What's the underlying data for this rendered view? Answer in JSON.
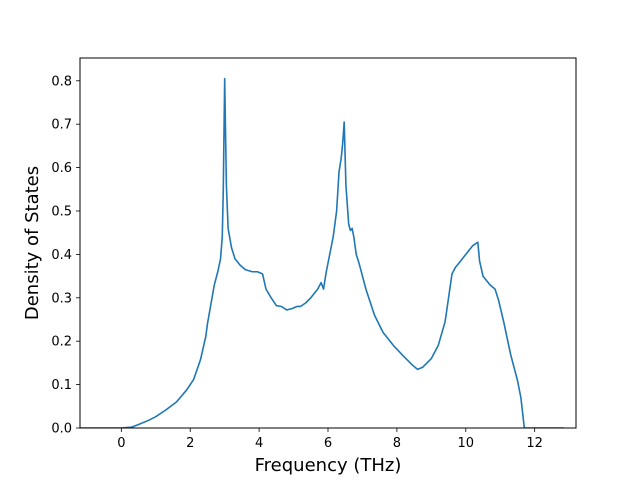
{
  "chart_data": {
    "type": "line",
    "title": "",
    "xlabel": "Frequency (THz)",
    "ylabel": "Density of States",
    "xlim": [
      -1.2,
      13.2
    ],
    "ylim": [
      0.0,
      0.8525
    ],
    "xticks": [
      0,
      2,
      4,
      6,
      8,
      10,
      12
    ],
    "xtick_labels": [
      "0",
      "2",
      "4",
      "6",
      "8",
      "10",
      "12"
    ],
    "yticks": [
      0.0,
      0.1,
      0.2,
      0.3,
      0.4,
      0.5,
      0.6,
      0.7,
      0.8
    ],
    "ytick_labels": [
      "0.0",
      "0.1",
      "0.2",
      "0.3",
      "0.4",
      "0.5",
      "0.6",
      "0.7",
      "0.8"
    ],
    "grid": false,
    "legend": "none",
    "series": [
      {
        "color": "#1f77b4",
        "x": [
          -1.2,
          0.0,
          0.3,
          0.5,
          0.8,
          1.0,
          1.3,
          1.6,
          1.9,
          2.1,
          2.3,
          2.45,
          2.5,
          2.7,
          2.8,
          2.88,
          2.93,
          2.96,
          3.0,
          3.05,
          3.1,
          3.2,
          3.3,
          3.45,
          3.6,
          3.8,
          3.95,
          4.1,
          4.2,
          4.35,
          4.5,
          4.65,
          4.8,
          4.95,
          5.1,
          5.2,
          5.35,
          5.5,
          5.7,
          5.8,
          5.87,
          5.95,
          6.05,
          6.15,
          6.25,
          6.32,
          6.38,
          6.42,
          6.47,
          6.52,
          6.6,
          6.65,
          6.7,
          6.75,
          6.82,
          6.9,
          7.1,
          7.35,
          7.6,
          7.9,
          8.2,
          8.45,
          8.6,
          8.75,
          9.0,
          9.2,
          9.4,
          9.5,
          9.6,
          9.7,
          9.8,
          10.0,
          10.2,
          10.35,
          10.4,
          10.5,
          10.7,
          10.85,
          10.95,
          11.1,
          11.3,
          11.5,
          11.6,
          11.7,
          12.0,
          12.85
        ],
        "y": [
          0.0,
          0.0,
          0.002,
          0.008,
          0.018,
          0.026,
          0.042,
          0.06,
          0.088,
          0.112,
          0.158,
          0.21,
          0.24,
          0.33,
          0.36,
          0.39,
          0.44,
          0.55,
          0.805,
          0.56,
          0.46,
          0.415,
          0.39,
          0.375,
          0.365,
          0.36,
          0.36,
          0.355,
          0.32,
          0.3,
          0.282,
          0.28,
          0.272,
          0.275,
          0.28,
          0.28,
          0.288,
          0.3,
          0.32,
          0.335,
          0.32,
          0.36,
          0.4,
          0.44,
          0.5,
          0.59,
          0.62,
          0.65,
          0.705,
          0.56,
          0.47,
          0.455,
          0.46,
          0.44,
          0.4,
          0.38,
          0.32,
          0.26,
          0.22,
          0.19,
          0.165,
          0.145,
          0.135,
          0.14,
          0.16,
          0.19,
          0.245,
          0.3,
          0.355,
          0.37,
          0.38,
          0.4,
          0.42,
          0.428,
          0.385,
          0.35,
          0.33,
          0.32,
          0.295,
          0.245,
          0.17,
          0.11,
          0.07,
          0.0,
          0.0,
          0.0
        ]
      }
    ]
  }
}
